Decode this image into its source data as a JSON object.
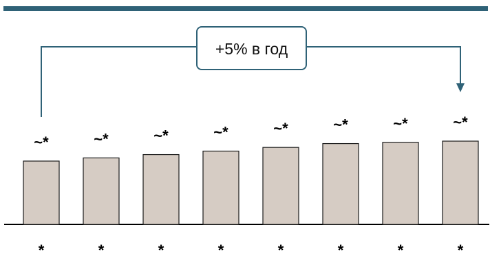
{
  "chart_data": {
    "type": "bar",
    "categories": [
      "*",
      "*",
      "*",
      "*",
      "*",
      "*",
      "*",
      "*"
    ],
    "values": [
      100,
      105,
      110.25,
      115.76,
      121.55,
      127.63,
      129.6,
      131.5
    ],
    "value_labels": [
      "~*",
      "~*",
      "~*",
      "~*",
      "~*",
      "~*",
      "~*",
      "~*"
    ],
    "title": "",
    "xlabel": "",
    "ylabel": "",
    "annotation": "+5% в год",
    "grid": false,
    "colors": {
      "bar_fill": "#d6ccc4",
      "bar_stroke": "#1a1a1a",
      "accent": "#2f6277"
    }
  }
}
